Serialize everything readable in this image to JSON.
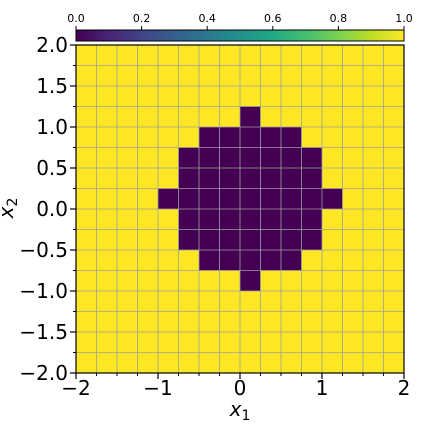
{
  "chart_data": {
    "type": "heatmap",
    "title": "",
    "xlabel": "x",
    "xlabel_sub": "1",
    "ylabel": "x",
    "ylabel_sub": "2",
    "xlim": [
      -2,
      2
    ],
    "ylim": [
      -2,
      2
    ],
    "grid": true,
    "cell_size": 0.25,
    "x_ticks": [
      -2,
      -1,
      0,
      1,
      2
    ],
    "x_tick_labels": [
      "−2",
      "−1",
      "0",
      "1",
      "2"
    ],
    "y_ticks": [
      -2,
      -1.5,
      -1,
      -0.5,
      0,
      0.5,
      1,
      1.5,
      2
    ],
    "y_tick_labels": [
      "−2.0",
      "−1.5",
      "−1.0",
      "−0.5",
      "0.0",
      "0.5",
      "1.0",
      "1.5",
      "2.0"
    ],
    "colorbar": {
      "colormap": "viridis",
      "location": "top",
      "range": [
        0,
        1
      ],
      "ticks": [
        0,
        0.2,
        0.4,
        0.6,
        0.8,
        1.0
      ],
      "tick_labels": [
        "0.0",
        "0.2",
        "0.4",
        "0.6",
        "0.8",
        "1.0"
      ]
    },
    "background_value": 1,
    "region_value": 0,
    "region_rows": [
      {
        "y": [
          1.0,
          1.25
        ],
        "x": [
          0.0,
          0.25
        ]
      },
      {
        "y": [
          0.75,
          1.0
        ],
        "x": [
          -0.5,
          0.75
        ]
      },
      {
        "y": [
          0.5,
          0.75
        ],
        "x": [
          -0.75,
          1.0
        ]
      },
      {
        "y": [
          0.25,
          0.5
        ],
        "x": [
          -0.75,
          1.0
        ]
      },
      {
        "y": [
          0.0,
          0.25
        ],
        "x": [
          -1.0,
          1.25
        ]
      },
      {
        "y": [
          -0.25,
          0.0
        ],
        "x": [
          -0.75,
          1.0
        ]
      },
      {
        "y": [
          -0.5,
          -0.25
        ],
        "x": [
          -0.75,
          1.0
        ]
      },
      {
        "y": [
          -0.75,
          -0.5
        ],
        "x": [
          -0.5,
          0.75
        ]
      },
      {
        "y": [
          -1.0,
          -0.75
        ],
        "x": [
          0.0,
          0.25
        ]
      }
    ],
    "colors": {
      "low": "#440154",
      "high": "#fde725",
      "grid": "#a0a0a0"
    }
  }
}
